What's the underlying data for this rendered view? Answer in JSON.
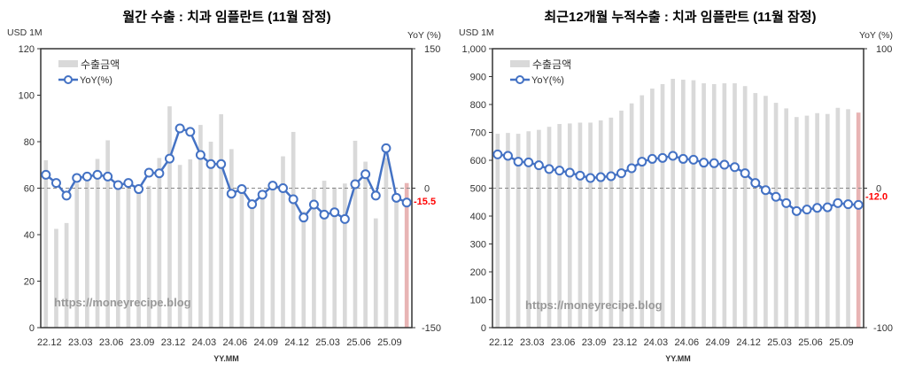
{
  "chart_data": [
    {
      "type": "bar+line",
      "title": "월간 수출 : 치과 임플란트 (11월 잠정)",
      "ylabel": "USD 1M",
      "y2label": "YoY (%)",
      "xlabel": "YY.MM",
      "ylim": [
        0,
        120
      ],
      "yticks": [
        0,
        20,
        40,
        60,
        80,
        100,
        120
      ],
      "y2lim": [
        -150,
        150
      ],
      "y2ticks": [
        -150,
        0,
        150
      ],
      "legend": {
        "bar": "수출금액",
        "line": "YoY(%)",
        "placement": "top-left"
      },
      "watermark": "https://moneyrecipe.blog",
      "xtick_labels": [
        "22.12",
        "23.03",
        "23.06",
        "23.09",
        "23.12",
        "24.03",
        "24.06",
        "24.09",
        "24.12",
        "25.03",
        "25.06",
        "25.09"
      ],
      "x": [
        "22.12",
        "23.01",
        "23.02",
        "23.03",
        "23.04",
        "23.05",
        "23.06",
        "23.07",
        "23.08",
        "23.09",
        "23.10",
        "23.11",
        "23.12",
        "24.01",
        "24.02",
        "24.03",
        "24.04",
        "24.05",
        "24.06",
        "24.07",
        "24.08",
        "24.09",
        "24.10",
        "24.11",
        "24.12",
        "25.01",
        "25.02",
        "25.03",
        "25.04",
        "25.05",
        "25.06",
        "25.07",
        "25.08",
        "25.09",
        "25.10",
        "25.11"
      ],
      "bars": [
        72,
        42.5,
        45,
        62,
        63,
        72.6,
        80.6,
        62,
        61,
        60,
        61,
        73,
        95.2,
        70,
        72.4,
        87.2,
        80,
        91.8,
        76.8,
        60,
        54,
        57,
        60,
        73.7,
        84.2,
        50,
        59.7,
        63.2,
        60.3,
        62,
        80.4,
        71.4,
        47,
        73,
        55,
        62.2
      ],
      "yoy": [
        14.4,
        5.6,
        -8,
        11,
        12.5,
        14.4,
        12.5,
        3.3,
        5.6,
        -1,
        16.7,
        16,
        31.8,
        64.3,
        60.6,
        35.7,
        25.9,
        25.9,
        -5.9,
        -1,
        -17.3,
        -7,
        2.7,
        0,
        -11.9,
        -31.6,
        -17.6,
        -28.4,
        -25.9,
        -33.2,
        4.3,
        15,
        -8,
        43,
        -10.3,
        -15.5
      ],
      "last_label": "-15.5",
      "colors": {
        "bar": "#d9d9d9",
        "last_bar": "#e8b4b4",
        "line": "#4472c4",
        "label": "#ff0000"
      }
    },
    {
      "type": "bar+line",
      "title": "최근12개월 누적수출 : 치과 임플란트 (11월 잠정)",
      "ylabel": "USD 1M",
      "y2label": "YoY (%)",
      "xlabel": "YY.MM",
      "ylim": [
        0,
        1000
      ],
      "yticks": [
        0,
        100,
        200,
        300,
        400,
        500,
        600,
        700,
        800,
        900,
        1000
      ],
      "ytick_labels": [
        "0",
        "100",
        "200",
        "300",
        "400",
        "500",
        "600",
        "700",
        "800",
        "900",
        "1,000"
      ],
      "y2lim": [
        -100,
        100
      ],
      "y2ticks": [
        -100,
        0,
        100
      ],
      "legend": {
        "bar": "수출금액",
        "line": "YoY(%)",
        "placement": "top-left"
      },
      "watermark": "https://moneyrecipe.blog",
      "xtick_labels": [
        "22.12",
        "23.03",
        "23.06",
        "23.09",
        "23.12",
        "24.03",
        "24.06",
        "24.09",
        "24.12",
        "25.03",
        "25.06",
        "25.09"
      ],
      "x": [
        "22.12",
        "23.01",
        "23.02",
        "23.03",
        "23.04",
        "23.05",
        "23.06",
        "23.07",
        "23.08",
        "23.09",
        "23.10",
        "23.11",
        "23.12",
        "24.01",
        "24.02",
        "24.03",
        "24.04",
        "24.05",
        "24.06",
        "24.07",
        "24.08",
        "24.09",
        "24.10",
        "24.11",
        "24.12",
        "25.01",
        "25.02",
        "25.03",
        "25.04",
        "25.05",
        "25.06",
        "25.07",
        "25.08",
        "25.09",
        "25.10",
        "25.11"
      ],
      "bars": [
        695,
        698,
        695,
        704,
        709,
        720,
        730,
        732,
        735,
        735,
        743,
        753,
        778,
        804,
        833,
        857,
        873,
        892,
        889,
        887,
        876,
        873,
        876,
        876,
        866,
        841,
        831,
        806,
        786,
        755,
        760,
        769,
        766,
        788,
        783,
        771
      ],
      "yoy": [
        24.2,
        23.2,
        19,
        18.5,
        16.4,
        13.7,
        12.6,
        11.1,
        9,
        7.3,
        7.9,
        8.6,
        10.7,
        14.3,
        19,
        21,
        21.7,
        23.2,
        21,
        20.4,
        18.3,
        17.9,
        16.8,
        15.1,
        10.7,
        3.7,
        -1.4,
        -6.2,
        -10.7,
        -16.4,
        -15.3,
        -14.1,
        -13.7,
        -10.7,
        -11.5,
        -12.0
      ],
      "last_label": "-12.0",
      "colors": {
        "bar": "#d9d9d9",
        "last_bar": "#e8b4b4",
        "line": "#4472c4",
        "label": "#ff0000"
      }
    }
  ]
}
